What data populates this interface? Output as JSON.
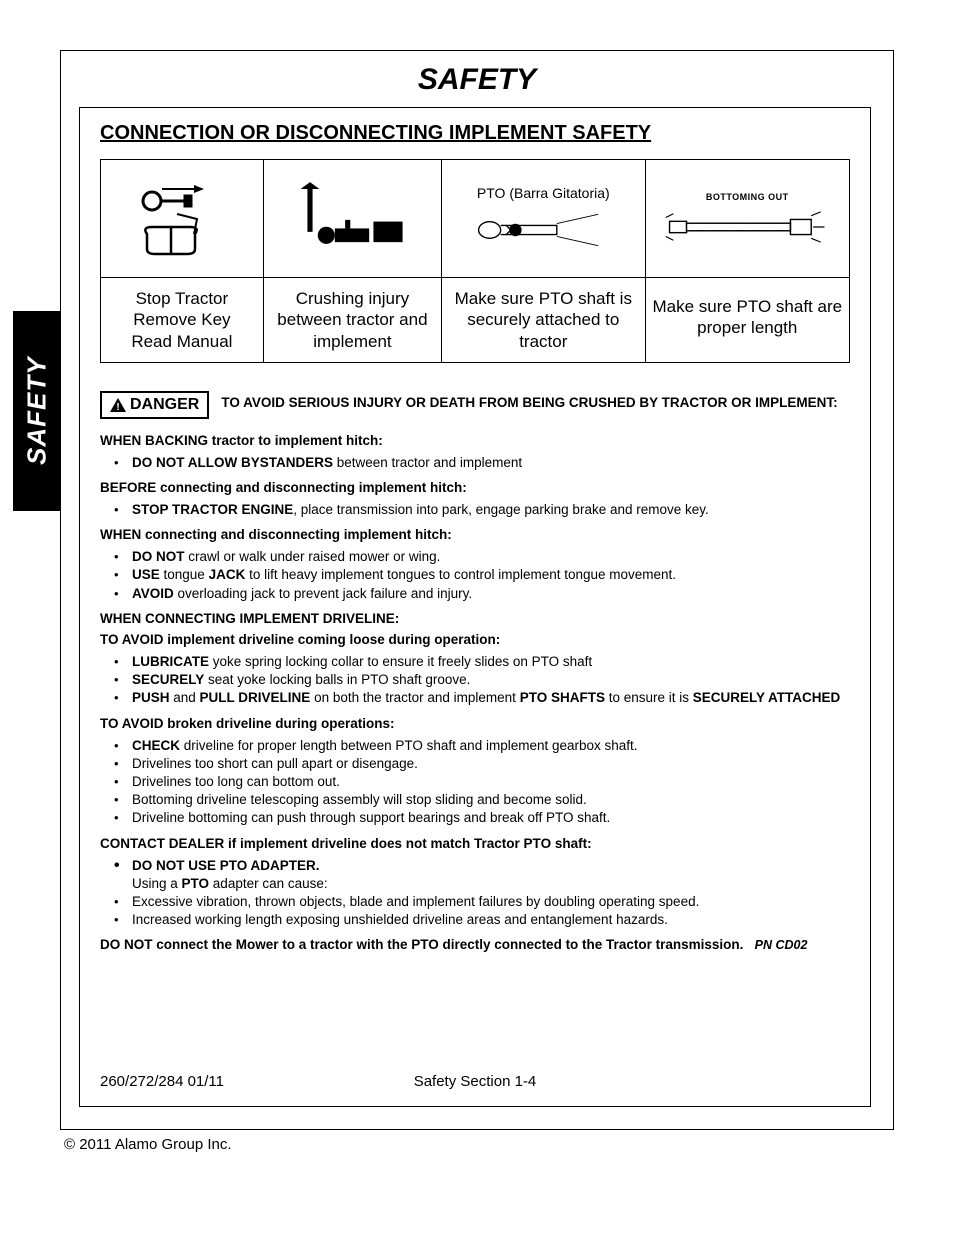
{
  "page": {
    "title": "SAFETY",
    "side_tab": "SAFETY",
    "section_heading": "CONNECTION OR DISCONNECTING IMPLEMENT SAFETY",
    "footer_left": "260/272/284   01/11",
    "footer_center": "Safety Section 1-4",
    "copyright": "© 2011 Alamo Group Inc.",
    "pn_code": "PN CD02"
  },
  "pictograms": [
    {
      "top_label": "",
      "caption": "Stop Tractor\nRemove Key\nRead Manual"
    },
    {
      "top_label": "",
      "caption": "Crushing injury between tractor and implement"
    },
    {
      "top_label": "PTO (Barra Gitatoria)",
      "caption": "Make sure PTO shaft is securely attached to tractor"
    },
    {
      "top_label": "BOTTOMING OUT",
      "caption": "Make sure PTO shaft are proper length"
    }
  ],
  "danger": {
    "badge": "DANGER",
    "text": "TO AVOID SERIOUS INJURY OR DEATH FROM BEING CRUSHED BY TRACTOR OR IMPLEMENT:"
  },
  "sections": [
    {
      "lead_html": "<b>WHEN BACKING</b> <b>tractor to implement hitch:</b>",
      "items": [
        "<b>DO NOT ALLOW BYSTANDERS</b> between tractor and implement"
      ]
    },
    {
      "lead_html": "<b>BEFORE connecting and disconnecting implement hitch:</b>",
      "items": [
        "<b>STOP TRACTOR ENGINE</b>, place transmission into park, engage parking brake and remove key."
      ]
    },
    {
      "lead_html": "<b>WHEN connecting and disconnecting implement hitch:</b>",
      "items": [
        "<b>DO NOT</b> crawl or walk under raised mower or wing.",
        "<b>USE</b> tongue <b>JACK</b> to lift heavy implement tongues to control implement tongue movement.",
        "<b>AVOID</b> overloading jack to prevent jack failure and injury."
      ]
    },
    {
      "lead_html": "<b>WHEN CONNECTING IMPLEMENT DRIVELINE:</b>",
      "items": []
    },
    {
      "lead_html": "<b>TO AVOID implement driveline coming loose during operation:</b>",
      "items": [
        "<b>LUBRICATE</b>  yoke spring locking collar to ensure it freely slides on PTO shaft",
        "<b>SECURELY</b> seat yoke locking balls in PTO shaft groove.",
        "<b>PUSH</b> and <b>PULL DRIVELINE</b> on both the tractor and implement <b>PTO SHAFTS</b> to ensure it is <b>SECURELY ATTACHED</b>"
      ]
    },
    {
      "lead_html": "<b>TO AVOID broken driveline during operations:</b>",
      "items": [
        "<b>CHECK</b> driveline for proper length between PTO shaft and implement gearbox shaft.",
        "Drivelines too short can pull apart or disengage.",
        "Drivelines too long can bottom out.",
        "Bottoming driveline telescoping assembly will stop sliding and become solid.",
        "Driveline bottoming can push through support bearings and break off PTO shaft."
      ]
    },
    {
      "lead_html": "<b>CONTACT DEALER if implement driveline does not match Tractor PTO shaft:</b>",
      "items": [
        "<b>DO NOT USE PTO ADAPTER.</b><br>Using a <b>PTO</b> adapter can cause:",
        "Excessive vibration, thrown objects, blade and implement failures by doubling operating speed.",
        "Increased working length exposing unshielded driveline areas and entanglement hazards."
      ],
      "first_item_strong": true
    }
  ],
  "final_line_html": "<b>DO NOT connect the Mower to a tractor with the PTO directly connected to the Tractor transmission.</b>",
  "colors": {
    "text": "#000000",
    "background": "#ffffff",
    "tab_bg": "#000000",
    "tab_fg": "#ffffff",
    "border": "#000000"
  },
  "typography": {
    "title_size_pt": 22,
    "heading_size_pt": 15,
    "body_size_pt": 10,
    "caption_size_pt": 13,
    "font_family": "Arial"
  }
}
